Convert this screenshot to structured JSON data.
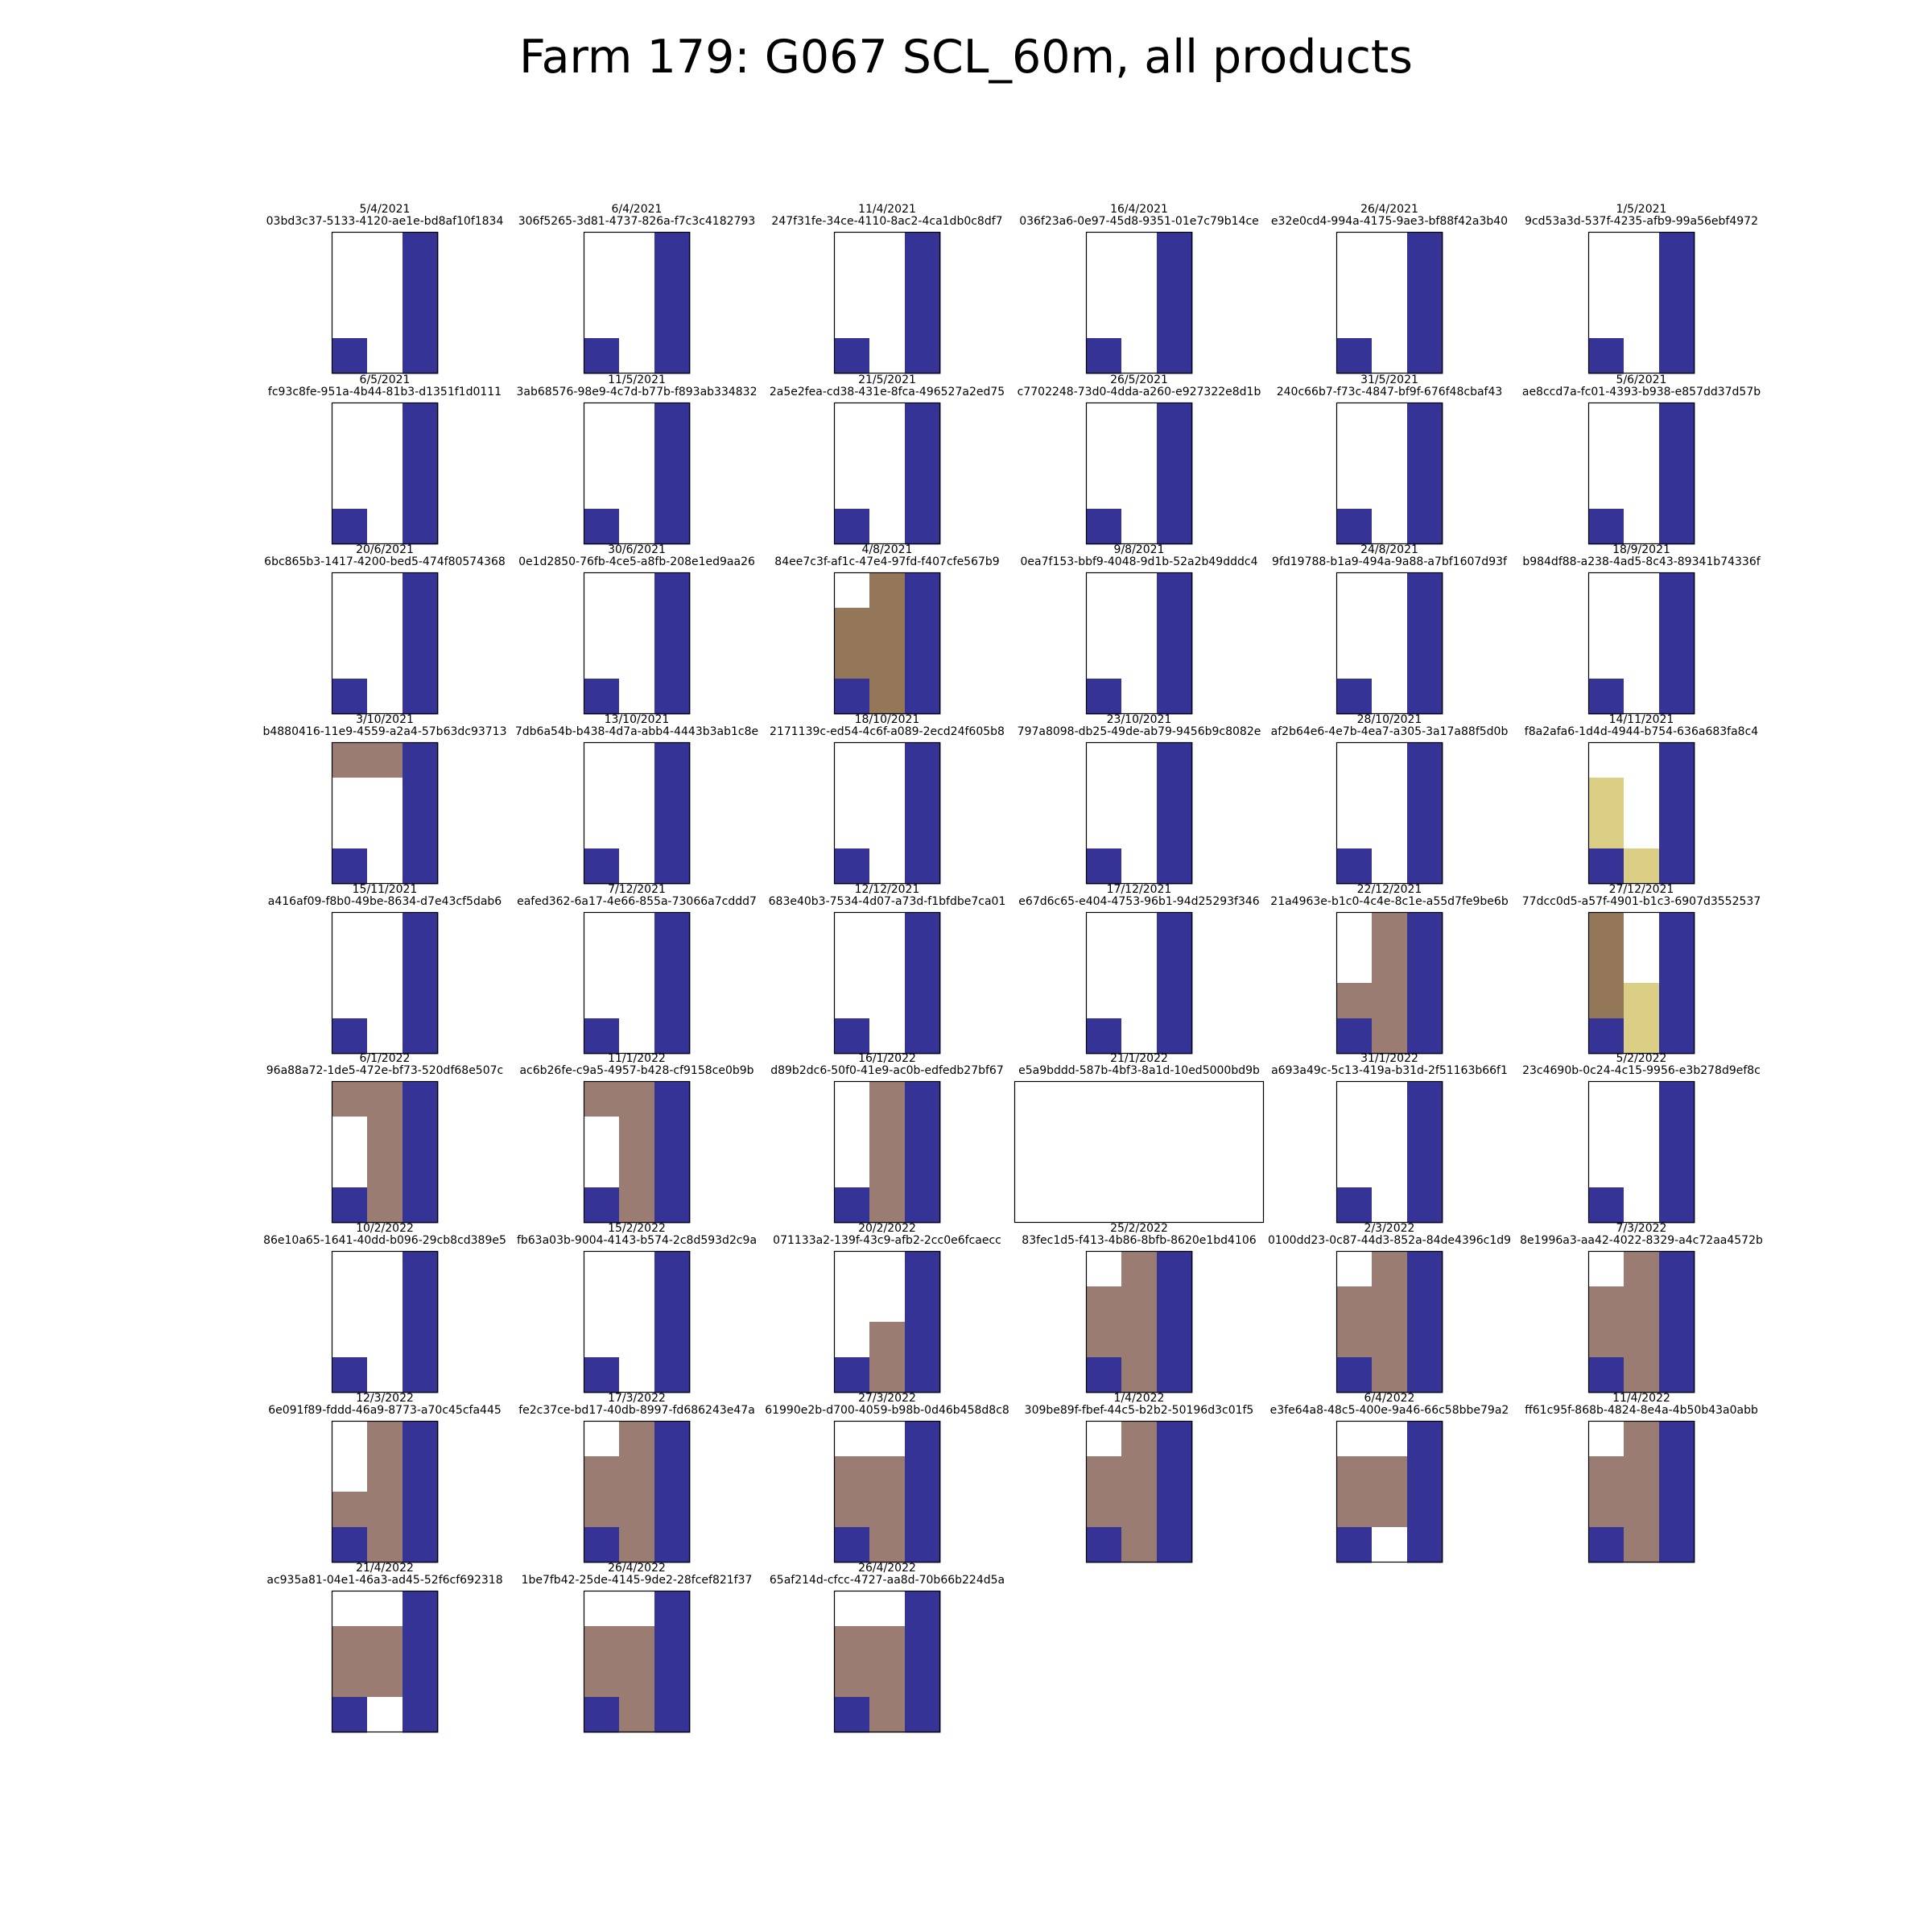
{
  "title": "Farm 179: G067 SCL_60m, all products",
  "chart_data": {
    "type": "heatmap",
    "title": "Farm 179: G067 SCL_60m, all products",
    "grid_columns": 6,
    "cell_grid": {
      "rows": 4,
      "cols": 3
    },
    "colors": {
      "W": "#ffffff",
      "B": "#363396",
      "D": "#947758",
      "M": "#9b7c72",
      "Y": "#dbcf86"
    },
    "legend_codes": {
      "W": "white",
      "B": "blue",
      "D": "dark-brown",
      "M": "mauve-brown",
      "Y": "yellow"
    },
    "panels": [
      {
        "date": "5/4/2021",
        "id": "03bd3c37-5133-4120-ae1e-bd8af10f1834",
        "cells": [
          "WWB",
          "WWB",
          "WWB",
          "BWB"
        ]
      },
      {
        "date": "6/4/2021",
        "id": "306f5265-3d81-4737-826a-f7c3c4182793",
        "cells": [
          "WWB",
          "WWB",
          "WWB",
          "BWB"
        ]
      },
      {
        "date": "11/4/2021",
        "id": "247f31fe-34ce-4110-8ac2-4ca1db0c8df7",
        "cells": [
          "WWB",
          "WWB",
          "WWB",
          "BWB"
        ]
      },
      {
        "date": "16/4/2021",
        "id": "036f23a6-0e97-45d8-9351-01e7c79b14ce",
        "cells": [
          "WWB",
          "WWB",
          "WWB",
          "BWB"
        ]
      },
      {
        "date": "26/4/2021",
        "id": "e32e0cd4-994a-4175-9ae3-bf88f42a3b40",
        "cells": [
          "WWB",
          "WWB",
          "WWB",
          "BWB"
        ]
      },
      {
        "date": "1/5/2021",
        "id": "9cd53a3d-537f-4235-afb9-99a56ebf4972",
        "cells": [
          "WWB",
          "WWB",
          "WWB",
          "BWB"
        ]
      },
      {
        "date": "6/5/2021",
        "id": "fc93c8fe-951a-4b44-81b3-d1351f1d0111",
        "cells": [
          "WWB",
          "WWB",
          "WWB",
          "BWB"
        ]
      },
      {
        "date": "11/5/2021",
        "id": "3ab68576-98e9-4c7d-b77b-f893ab334832",
        "cells": [
          "WWB",
          "WWB",
          "WWB",
          "BWB"
        ]
      },
      {
        "date": "21/5/2021",
        "id": "2a5e2fea-cd38-431e-8fca-496527a2ed75",
        "cells": [
          "WWB",
          "WWB",
          "WWB",
          "BWB"
        ]
      },
      {
        "date": "26/5/2021",
        "id": "c7702248-73d0-4dda-a260-e927322e8d1b",
        "cells": [
          "WWB",
          "WWB",
          "WWB",
          "BWB"
        ]
      },
      {
        "date": "31/5/2021",
        "id": "240c66b7-f73c-4847-bf9f-676f48cbaf43",
        "cells": [
          "WWB",
          "WWB",
          "WWB",
          "BWB"
        ]
      },
      {
        "date": "5/6/2021",
        "id": "ae8ccd7a-fc01-4393-b938-e857dd37d57b",
        "cells": [
          "WWB",
          "WWB",
          "WWB",
          "BWB"
        ]
      },
      {
        "date": "20/6/2021",
        "id": "6bc865b3-1417-4200-bed5-474f80574368",
        "cells": [
          "WWB",
          "WWB",
          "WWB",
          "BWB"
        ]
      },
      {
        "date": "30/6/2021",
        "id": "0e1d2850-76fb-4ce5-a8fb-208e1ed9aa26",
        "cells": [
          "WWB",
          "WWB",
          "WWB",
          "BWB"
        ]
      },
      {
        "date": "4/8/2021",
        "id": "84ee7c3f-af1c-47e4-97fd-f407cfe567b9",
        "cells": [
          "WDB",
          "DDB",
          "DDB",
          "BDB"
        ]
      },
      {
        "date": "9/8/2021",
        "id": "0ea7f153-bbf9-4048-9d1b-52a2b49dddc4",
        "cells": [
          "WWB",
          "WWB",
          "WWB",
          "BWB"
        ]
      },
      {
        "date": "24/8/2021",
        "id": "9fd19788-b1a9-494a-9a88-a7bf1607d93f",
        "cells": [
          "WWB",
          "WWB",
          "WWB",
          "BWB"
        ]
      },
      {
        "date": "18/9/2021",
        "id": "b984df88-a238-4ad5-8c43-89341b74336f",
        "cells": [
          "WWB",
          "WWB",
          "WWB",
          "BWB"
        ]
      },
      {
        "date": "3/10/2021",
        "id": "b4880416-11e9-4559-a2a4-57b63dc93713",
        "cells": [
          "MMB",
          "WWB",
          "WWB",
          "BWB"
        ]
      },
      {
        "date": "13/10/2021",
        "id": "7db6a54b-b438-4d7a-abb4-4443b3ab1c8e",
        "cells": [
          "WWB",
          "WWB",
          "WWB",
          "BWB"
        ]
      },
      {
        "date": "18/10/2021",
        "id": "2171139c-ed54-4c6f-a089-2ecd24f605b8",
        "cells": [
          "WWB",
          "WWB",
          "WWB",
          "BWB"
        ]
      },
      {
        "date": "23/10/2021",
        "id": "797a8098-db25-49de-ab79-9456b9c8082e",
        "cells": [
          "WWB",
          "WWB",
          "WWB",
          "BWB"
        ]
      },
      {
        "date": "28/10/2021",
        "id": "af2b64e6-4e7b-4ea7-a305-3a17a88f5d0b",
        "cells": [
          "WWB",
          "WWB",
          "WWB",
          "BWB"
        ]
      },
      {
        "date": "14/11/2021",
        "id": "f8a2afa6-1d4d-4944-b754-636a683fa8c4",
        "cells": [
          "WWB",
          "YWB",
          "YWB",
          "BYB"
        ]
      },
      {
        "date": "15/11/2021",
        "id": "a416af09-f8b0-49be-8634-d7e43cf5dab6",
        "cells": [
          "WWB",
          "WWB",
          "WWB",
          "BWB"
        ]
      },
      {
        "date": "7/12/2021",
        "id": "eafed362-6a17-4e66-855a-73066a7cddd7",
        "cells": [
          "WWB",
          "WWB",
          "WWB",
          "BWB"
        ]
      },
      {
        "date": "12/12/2021",
        "id": "683e40b3-7534-4d07-a73d-f1bfdbe7ca01",
        "cells": [
          "WWB",
          "WWB",
          "WWB",
          "BWB"
        ]
      },
      {
        "date": "17/12/2021",
        "id": "e67d6c65-e404-4753-96b1-94d25293f346",
        "cells": [
          "WWB",
          "WWB",
          "WWB",
          "BWB"
        ]
      },
      {
        "date": "22/12/2021",
        "id": "21a4963e-b1c0-4c4e-8c1e-a55d7fe9be6b",
        "cells": [
          "WMB",
          "WMB",
          "MMB",
          "BMB"
        ]
      },
      {
        "date": "27/12/2021",
        "id": "77dcc0d5-a57f-4901-b1c3-6907d3552537",
        "cells": [
          "DWB",
          "DWB",
          "DYB",
          "BYB"
        ]
      },
      {
        "date": "6/1/2022",
        "id": "96a88a72-1de5-472e-bf73-520df68e507c",
        "cells": [
          "MMB",
          "WMB",
          "WMB",
          "BMB"
        ]
      },
      {
        "date": "11/1/2022",
        "id": "ac6b26fe-c9a5-4957-b428-cf9158ce0b9b",
        "cells": [
          "MMB",
          "WMB",
          "WMB",
          "BMB"
        ]
      },
      {
        "date": "16/1/2022",
        "id": "d89b2dc6-50f0-41e9-ac0b-edfedb27bf67",
        "cells": [
          "WMB",
          "WMB",
          "WMB",
          "BMB"
        ]
      },
      {
        "date": "21/1/2022",
        "id": "e5a9bddd-587b-4bf3-8a1d-10ed5000bd9b",
        "cells": null,
        "empty": true
      },
      {
        "date": "31/1/2022",
        "id": "a693a49c-5c13-419a-b31d-2f51163b66f1",
        "cells": [
          "WWB",
          "WWB",
          "WWB",
          "BWB"
        ]
      },
      {
        "date": "5/2/2022",
        "id": "23c4690b-0c24-4c15-9956-e3b278d9ef8c",
        "cells": [
          "WWB",
          "WWB",
          "WWB",
          "BWB"
        ]
      },
      {
        "date": "10/2/2022",
        "id": "86e10a65-1641-40dd-b096-29cb8cd389e5",
        "cells": [
          "WWB",
          "WWB",
          "WWB",
          "BWB"
        ]
      },
      {
        "date": "15/2/2022",
        "id": "fb63a03b-9004-4143-b574-2c8d593d2c9a",
        "cells": [
          "WWB",
          "WWB",
          "WWB",
          "BWB"
        ]
      },
      {
        "date": "20/2/2022",
        "id": "071133a2-139f-43c9-afb2-2cc0e6fcaecc",
        "cells": [
          "WWB",
          "WWB",
          "WMB",
          "BMB"
        ]
      },
      {
        "date": "25/2/2022",
        "id": "83fec1d5-f413-4b86-8bfb-8620e1bd4106",
        "cells": [
          "WMB",
          "MMB",
          "MMB",
          "BMB"
        ]
      },
      {
        "date": "2/3/2022",
        "id": "0100dd23-0c87-44d3-852a-84de4396c1d9",
        "cells": [
          "WMB",
          "MMB",
          "MMB",
          "BMB"
        ]
      },
      {
        "date": "7/3/2022",
        "id": "8e1996a3-aa42-4022-8329-a4c72aa4572b",
        "cells": [
          "WMB",
          "MMB",
          "MMB",
          "BMB"
        ]
      },
      {
        "date": "12/3/2022",
        "id": "6e091f89-fddd-46a9-8773-a70c45cfa445",
        "cells": [
          "WMB",
          "WMB",
          "MMB",
          "BMB"
        ]
      },
      {
        "date": "17/3/2022",
        "id": "fe2c37ce-bd17-40db-8997-fd686243e47a",
        "cells": [
          "WMB",
          "MMB",
          "MMB",
          "BMB"
        ]
      },
      {
        "date": "27/3/2022",
        "id": "61990e2b-d700-4059-b98b-0d46b458d8c8",
        "cells": [
          "WWB",
          "MMB",
          "MMB",
          "BMB"
        ]
      },
      {
        "date": "1/4/2022",
        "id": "309be89f-fbef-44c5-b2b2-50196d3c01f5",
        "cells": [
          "WMB",
          "MMB",
          "MMB",
          "BMB"
        ]
      },
      {
        "date": "6/4/2022",
        "id": "e3fe64a8-48c5-400e-9a46-66c58bbe79a2",
        "cells": [
          "WWB",
          "MMB",
          "MMB",
          "BWB"
        ]
      },
      {
        "date": "11/4/2022",
        "id": "ff61c95f-868b-4824-8e4a-4b50b43a0abb",
        "cells": [
          "WMB",
          "MMB",
          "MMB",
          "BMB"
        ]
      },
      {
        "date": "21/4/2022",
        "id": "ac935a81-04e1-46a3-ad45-52f6cf692318",
        "cells": [
          "WWB",
          "MMB",
          "MMB",
          "BWB"
        ]
      },
      {
        "date": "26/4/2022",
        "id": "1be7fb42-25de-4145-9de2-28fcef821f37",
        "cells": [
          "WWB",
          "MMB",
          "MMB",
          "BMB"
        ]
      },
      {
        "date": "26/4/2022",
        "id": "65af214d-cfcc-4727-aa8d-70b66b224d5a",
        "cells": [
          "WWB",
          "MMB",
          "MMB",
          "BMB"
        ]
      }
    ]
  }
}
